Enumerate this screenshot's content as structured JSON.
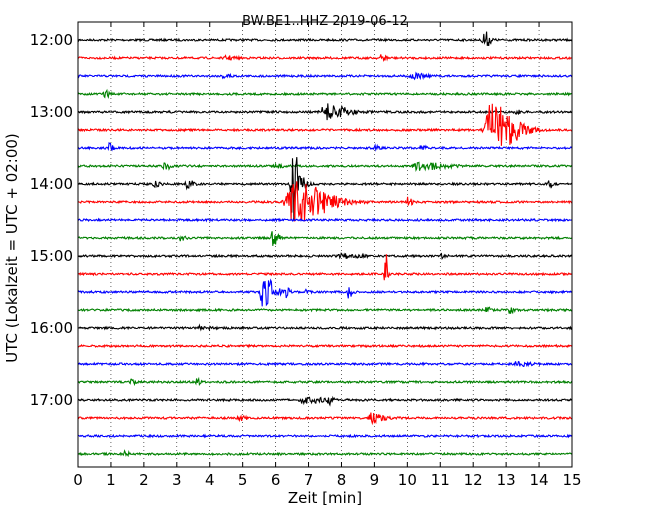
{
  "chart_data": {
    "type": "line",
    "title": "BW.BE1..HHZ 2019-06-12",
    "xlabel": "Zeit  [min]",
    "ylabel": "UTC (Lokalzeit = UTC + 02:00)",
    "xlim": [
      0,
      15
    ],
    "x_ticks": [
      "0",
      "1",
      "2",
      "3",
      "4",
      "5",
      "6",
      "7",
      "8",
      "9",
      "10",
      "11",
      "12",
      "13",
      "14",
      "15"
    ],
    "y_ticks": [
      "12:00",
      "13:00",
      "14:00",
      "15:00",
      "16:00",
      "17:00"
    ],
    "grid": true,
    "traces": [
      {
        "start": "12:00",
        "color": "#000000",
        "events": [
          [
            12.3,
            10,
            0.15
          ]
        ]
      },
      {
        "start": "12:15",
        "color": "#ff0000",
        "events": [
          [
            9.2,
            3,
            0.15
          ],
          [
            4.5,
            2,
            0.2
          ]
        ]
      },
      {
        "start": "12:30",
        "color": "#0000ff",
        "events": [
          [
            4.4,
            2,
            0.2
          ],
          [
            10.1,
            3,
            0.3
          ]
        ]
      },
      {
        "start": "12:45",
        "color": "#008000",
        "events": [
          [
            0.8,
            3,
            0.15
          ]
        ]
      },
      {
        "start": "13:00",
        "color": "#000000",
        "events": [
          [
            7.5,
            8,
            0.5
          ],
          [
            13.3,
            2,
            0.1
          ]
        ]
      },
      {
        "start": "13:15",
        "color": "#ff0000",
        "events": [
          [
            12.5,
            26,
            0.6
          ]
        ]
      },
      {
        "start": "13:30",
        "color": "#0000ff",
        "events": [
          [
            0.9,
            6,
            0.1
          ],
          [
            10.4,
            4,
            0.1
          ],
          [
            9.0,
            2,
            0.1
          ]
        ]
      },
      {
        "start": "13:45",
        "color": "#008000",
        "events": [
          [
            2.6,
            3,
            0.2
          ],
          [
            10.3,
            4,
            0.6
          ],
          [
            6.0,
            2,
            0.2
          ]
        ]
      },
      {
        "start": "14:00",
        "color": "#000000",
        "events": [
          [
            6.5,
            40,
            0.2
          ],
          [
            3.3,
            6,
            0.15
          ],
          [
            2.3,
            3,
            0.15
          ],
          [
            14.3,
            3,
            0.1
          ]
        ]
      },
      {
        "start": "14:15",
        "color": "#ff0000",
        "events": [
          [
            6.5,
            22,
            0.8
          ],
          [
            10.0,
            5,
            0.1
          ]
        ]
      },
      {
        "start": "14:30",
        "color": "#0000ff",
        "events": []
      },
      {
        "start": "14:45",
        "color": "#008000",
        "events": [
          [
            5.9,
            12,
            0.12
          ],
          [
            3.1,
            3,
            0.1
          ]
        ]
      },
      {
        "start": "15:00",
        "color": "#000000",
        "events": [
          [
            8.0,
            2,
            0.4
          ],
          [
            11.0,
            2,
            0.1
          ]
        ]
      },
      {
        "start": "15:15",
        "color": "#ff0000",
        "events": [
          [
            9.3,
            34,
            0.06
          ]
        ]
      },
      {
        "start": "15:30",
        "color": "#0000ff",
        "events": [
          [
            5.6,
            16,
            0.3
          ],
          [
            6.3,
            5,
            0.1
          ],
          [
            8.2,
            6,
            0.1
          ],
          [
            6.9,
            2,
            0.1
          ]
        ]
      },
      {
        "start": "15:45",
        "color": "#008000",
        "events": [
          [
            12.4,
            3,
            0.1
          ],
          [
            13.1,
            3,
            0.1
          ]
        ]
      },
      {
        "start": "16:00",
        "color": "#000000",
        "events": [
          [
            3.7,
            2,
            0.2
          ]
        ]
      },
      {
        "start": "16:15",
        "color": "#ff0000",
        "events": []
      },
      {
        "start": "16:30",
        "color": "#0000ff",
        "events": [
          [
            13.3,
            2,
            0.3
          ]
        ]
      },
      {
        "start": "16:45",
        "color": "#008000",
        "events": [
          [
            1.6,
            3,
            0.1
          ],
          [
            3.6,
            3,
            0.1
          ]
        ]
      },
      {
        "start": "17:00",
        "color": "#000000",
        "events": [
          [
            6.8,
            4,
            0.4
          ],
          [
            7.6,
            4,
            0.1
          ]
        ]
      },
      {
        "start": "17:15",
        "color": "#ff0000",
        "events": [
          [
            8.9,
            5,
            0.3
          ],
          [
            4.9,
            2,
            0.2
          ]
        ]
      },
      {
        "start": "17:30",
        "color": "#0000ff",
        "events": []
      },
      {
        "start": "17:45",
        "color": "#008000",
        "events": [
          [
            1.4,
            3,
            0.1
          ]
        ]
      }
    ]
  }
}
